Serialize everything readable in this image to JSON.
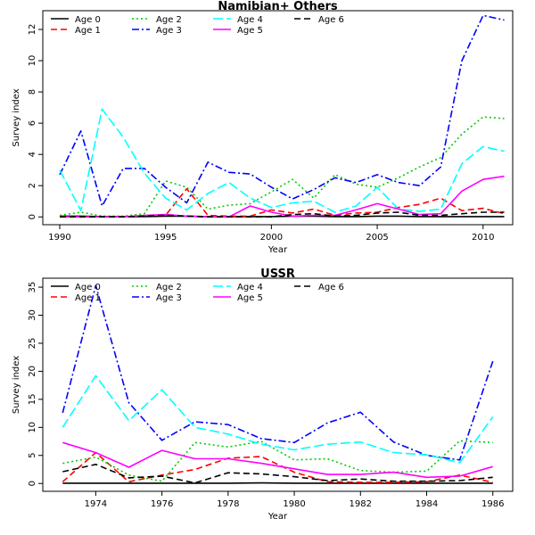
{
  "chart_data": [
    {
      "type": "line",
      "title": "Namibian+ Others",
      "xlabel": "Year",
      "ylabel": "Survey index",
      "xlim": [
        1989.2,
        2011.4
      ],
      "ylim": [
        -0.5,
        13.2
      ],
      "xticks": [
        1990,
        1995,
        2000,
        2005,
        2010
      ],
      "yticks": [
        0,
        2,
        4,
        6,
        8,
        10,
        12
      ],
      "legend_position": "top-left",
      "x": [
        1990,
        1991,
        1992,
        1993,
        1994,
        1995,
        1996,
        1997,
        1998,
        1999,
        2000,
        2001,
        2002,
        2003,
        2004,
        2005,
        2006,
        2007,
        2008,
        2009,
        2010,
        2011
      ],
      "series": [
        {
          "name": "Age 0",
          "color": "#000000",
          "dash": "solid",
          "values": [
            0.05,
            0.05,
            0.02,
            0.02,
            0.02,
            0.05,
            0.05,
            0.02,
            0.02,
            0.02,
            0.02,
            0.05,
            0.05,
            0.02,
            0.02,
            0.05,
            0.05,
            0.02,
            0.02,
            0.02,
            0.02,
            0.02
          ]
        },
        {
          "name": "Age 1",
          "color": "#ff0000",
          "dash": "dashed",
          "values": [
            0.05,
            0.0,
            0.0,
            0.0,
            0.05,
            0.1,
            1.8,
            0.1,
            0.05,
            0.05,
            0.45,
            0.25,
            0.5,
            0.1,
            0.25,
            0.3,
            0.6,
            0.8,
            1.2,
            0.4,
            0.55,
            0.2
          ]
        },
        {
          "name": "Age 2",
          "color": "#00cd00",
          "dash": "dotted",
          "values": [
            0.1,
            0.3,
            0.05,
            0.05,
            0.2,
            2.3,
            1.9,
            0.5,
            0.75,
            0.85,
            1.6,
            2.4,
            1.2,
            2.7,
            2.1,
            1.9,
            2.5,
            3.2,
            3.8,
            5.3,
            6.4,
            6.3
          ]
        },
        {
          "name": "Age 3",
          "color": "#0000ff",
          "dash": "dashdot",
          "values": [
            2.7,
            5.5,
            0.7,
            3.1,
            3.1,
            1.9,
            0.9,
            3.5,
            2.85,
            2.75,
            1.9,
            1.15,
            1.75,
            2.5,
            2.2,
            2.7,
            2.2,
            2.0,
            3.2,
            10.0,
            12.9,
            12.6
          ]
        },
        {
          "name": "Age 4",
          "color": "#00ffff",
          "dash": "longdash",
          "values": [
            3.0,
            0.4,
            6.9,
            5.1,
            2.8,
            1.2,
            0.45,
            1.5,
            2.2,
            1.2,
            0.6,
            0.9,
            1.0,
            0.3,
            0.7,
            1.9,
            0.5,
            0.35,
            0.5,
            3.4,
            4.5,
            4.2
          ]
        },
        {
          "name": "Age 5",
          "color": "#ff00ff",
          "dash": "solid",
          "values": [
            0.0,
            0.0,
            0.0,
            0.0,
            0.1,
            0.15,
            0.05,
            0.0,
            0.0,
            0.7,
            0.3,
            0.05,
            0.1,
            0.1,
            0.45,
            0.85,
            0.5,
            0.15,
            0.2,
            1.65,
            2.4,
            2.6
          ]
        },
        {
          "name": "Age 6",
          "color": "#000000",
          "dash": "dashed",
          "values": [
            0.0,
            0.0,
            0.0,
            0.0,
            0.05,
            0.1,
            0.05,
            0.0,
            0.0,
            0.0,
            0.0,
            0.15,
            0.2,
            0.05,
            0.1,
            0.25,
            0.3,
            0.1,
            0.1,
            0.2,
            0.3,
            0.3
          ]
        }
      ]
    },
    {
      "type": "line",
      "title": "USSR",
      "xlabel": "Year",
      "ylabel": "Survey index",
      "xlim": [
        1972.4,
        1986.6
      ],
      "ylim": [
        -1.4,
        36.6
      ],
      "xticks": [
        1974,
        1976,
        1978,
        1980,
        1982,
        1984,
        1986
      ],
      "yticks": [
        0,
        5,
        10,
        15,
        20,
        25,
        30,
        35
      ],
      "legend_position": "top-left",
      "x": [
        1973,
        1974,
        1975,
        1976,
        1977,
        1978,
        1979,
        1980,
        1981,
        1982,
        1983,
        1984,
        1985,
        1986
      ],
      "series": [
        {
          "name": "Age 0",
          "color": "#000000",
          "dash": "solid",
          "values": [
            0.05,
            0.05,
            0.05,
            0.05,
            0.05,
            0.05,
            0.1,
            0.05,
            0.05,
            0.05,
            0.05,
            0.05,
            0.05,
            0.05
          ]
        },
        {
          "name": "Age 1",
          "color": "#ff0000",
          "dash": "dashed",
          "values": [
            0.3,
            5.5,
            0.3,
            1.5,
            2.5,
            4.5,
            4.8,
            2.0,
            0.3,
            0.2,
            0.2,
            0.3,
            1.5,
            0.2
          ]
        },
        {
          "name": "Age 2",
          "color": "#00cd00",
          "dash": "dotted",
          "values": [
            3.6,
            4.7,
            1.5,
            0.4,
            7.3,
            6.5,
            7.5,
            4.2,
            4.4,
            2.3,
            2.0,
            2.2,
            7.6,
            7.3
          ]
        },
        {
          "name": "Age 3",
          "color": "#0000ff",
          "dash": "dashdot",
          "values": [
            12.6,
            35.3,
            14.4,
            7.7,
            11.0,
            10.5,
            8.0,
            7.3,
            10.8,
            12.7,
            7.4,
            5.0,
            4.2,
            21.8
          ]
        },
        {
          "name": "Age 4",
          "color": "#00ffff",
          "dash": "longdash",
          "values": [
            10.0,
            19.2,
            11.2,
            16.7,
            10.0,
            8.8,
            7.0,
            6.0,
            7.0,
            7.4,
            5.5,
            5.1,
            3.7,
            11.9
          ]
        },
        {
          "name": "Age 5",
          "color": "#ff00ff",
          "dash": "solid",
          "values": [
            7.3,
            5.5,
            2.9,
            5.9,
            4.4,
            4.4,
            3.6,
            2.6,
            1.6,
            1.6,
            2.0,
            1.1,
            1.3,
            3.0
          ]
        },
        {
          "name": "Age 6",
          "color": "#000000",
          "dash": "dashed",
          "values": [
            2.1,
            3.4,
            1.0,
            1.3,
            0.1,
            1.9,
            1.7,
            1.2,
            0.5,
            0.8,
            0.4,
            0.4,
            0.5,
            1.1
          ]
        }
      ]
    }
  ]
}
